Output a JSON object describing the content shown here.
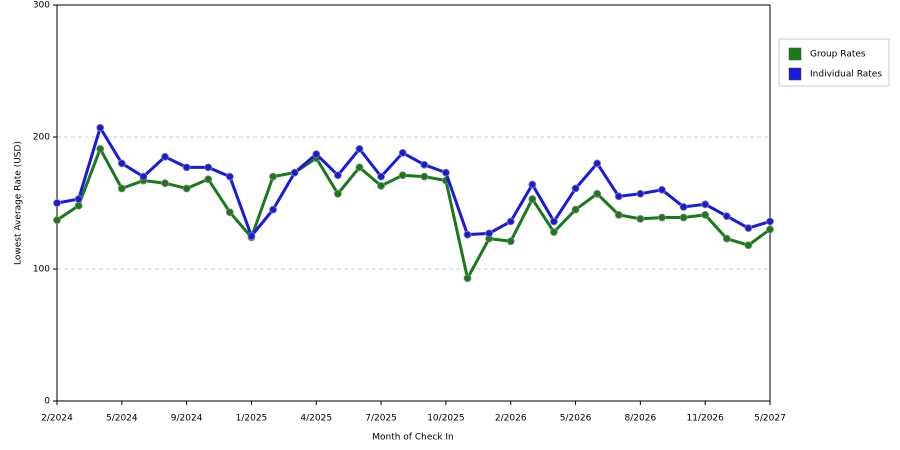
{
  "chart_data": {
    "type": "line",
    "x_label": "Month of Check In",
    "y_label": "Lowest Average Rate (USD)",
    "categories": [
      "2/2024",
      null,
      null,
      "5/2024",
      null,
      null,
      "9/2024",
      null,
      null,
      "1/2025",
      null,
      null,
      "4/2025",
      null,
      null,
      "7/2025",
      null,
      null,
      "10/2025",
      null,
      null,
      "2/2026",
      null,
      null,
      "5/2026",
      null,
      null,
      "8/2026",
      null,
      null,
      "11/2026",
      null,
      null,
      "5/2027"
    ],
    "series": [
      {
        "name": "Group Rates",
        "color": "#1a7a1a",
        "values": [
          137,
          148,
          191,
          161,
          167,
          165,
          161,
          168,
          143,
          124,
          170,
          173,
          184,
          157,
          177,
          163,
          171,
          170,
          167,
          93,
          123,
          121,
          153,
          128,
          145,
          157,
          141,
          138,
          139,
          139,
          141,
          123,
          118,
          130
        ]
      },
      {
        "name": "Individual Rates",
        "color": "#1a1adc",
        "values": [
          150,
          153,
          207,
          180,
          170,
          185,
          177,
          177,
          170,
          125,
          145,
          173,
          187,
          171,
          191,
          170,
          188,
          179,
          173,
          126,
          127,
          136,
          164,
          136,
          161,
          180,
          155,
          157,
          160,
          147,
          149,
          140,
          131,
          136
        ]
      }
    ],
    "ylim": [
      0,
      300
    ],
    "yticks": [
      0,
      100,
      200,
      300
    ],
    "grid": true,
    "legend": "top-right"
  }
}
